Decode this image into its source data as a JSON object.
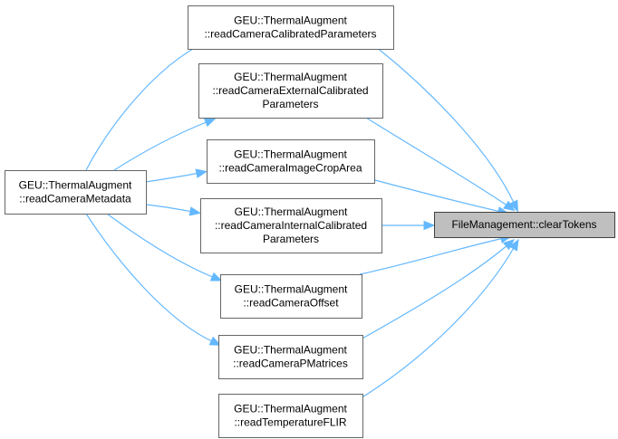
{
  "nodes": [
    {
      "id": "readCameraMetadata",
      "lines": [
        "GEU::ThermalAugment",
        "::readCameraMetadata"
      ]
    },
    {
      "id": "readCameraCalibratedParameters",
      "lines": [
        "GEU::ThermalAugment",
        "::readCameraCalibratedParameters"
      ]
    },
    {
      "id": "readCameraExternalCalibratedParameters",
      "lines": [
        "GEU::ThermalAugment",
        "::readCameraExternalCalibrated",
        "Parameters"
      ]
    },
    {
      "id": "readCameraImageCropArea",
      "lines": [
        "GEU::ThermalAugment",
        "::readCameraImageCropArea"
      ]
    },
    {
      "id": "readCameraInternalCalibratedParameters",
      "lines": [
        "GEU::ThermalAugment",
        "::readCameraInternalCalibrated",
        "Parameters"
      ]
    },
    {
      "id": "readCameraOffset",
      "lines": [
        "GEU::ThermalAugment",
        "::readCameraOffset"
      ]
    },
    {
      "id": "readCameraPMatrices",
      "lines": [
        "GEU::ThermalAugment",
        "::readCameraPMatrices"
      ]
    },
    {
      "id": "readTemperatureFLIR",
      "lines": [
        "GEU::ThermalAugment",
        "::readTemperatureFLIR"
      ]
    },
    {
      "id": "clearTokens",
      "lines": [
        "FileManagement::clearTokens"
      ]
    }
  ],
  "edges": [
    {
      "from": "readCameraMetadata",
      "to": "readCameraCalibratedParameters"
    },
    {
      "from": "readCameraMetadata",
      "to": "readCameraExternalCalibratedParameters"
    },
    {
      "from": "readCameraMetadata",
      "to": "readCameraImageCropArea"
    },
    {
      "from": "readCameraMetadata",
      "to": "readCameraInternalCalibratedParameters"
    },
    {
      "from": "readCameraMetadata",
      "to": "readCameraOffset"
    },
    {
      "from": "readCameraMetadata",
      "to": "readCameraPMatrices"
    },
    {
      "from": "readCameraCalibratedParameters",
      "to": "clearTokens"
    },
    {
      "from": "readCameraExternalCalibratedParameters",
      "to": "clearTokens"
    },
    {
      "from": "readCameraImageCropArea",
      "to": "clearTokens"
    },
    {
      "from": "readCameraInternalCalibratedParameters",
      "to": "clearTokens"
    },
    {
      "from": "readCameraOffset",
      "to": "clearTokens"
    },
    {
      "from": "readCameraPMatrices",
      "to": "clearTokens"
    },
    {
      "from": "readTemperatureFLIR",
      "to": "clearTokens"
    }
  ],
  "colors": {
    "edge": "#63b8ff",
    "target_fill": "#bfbfbf"
  }
}
